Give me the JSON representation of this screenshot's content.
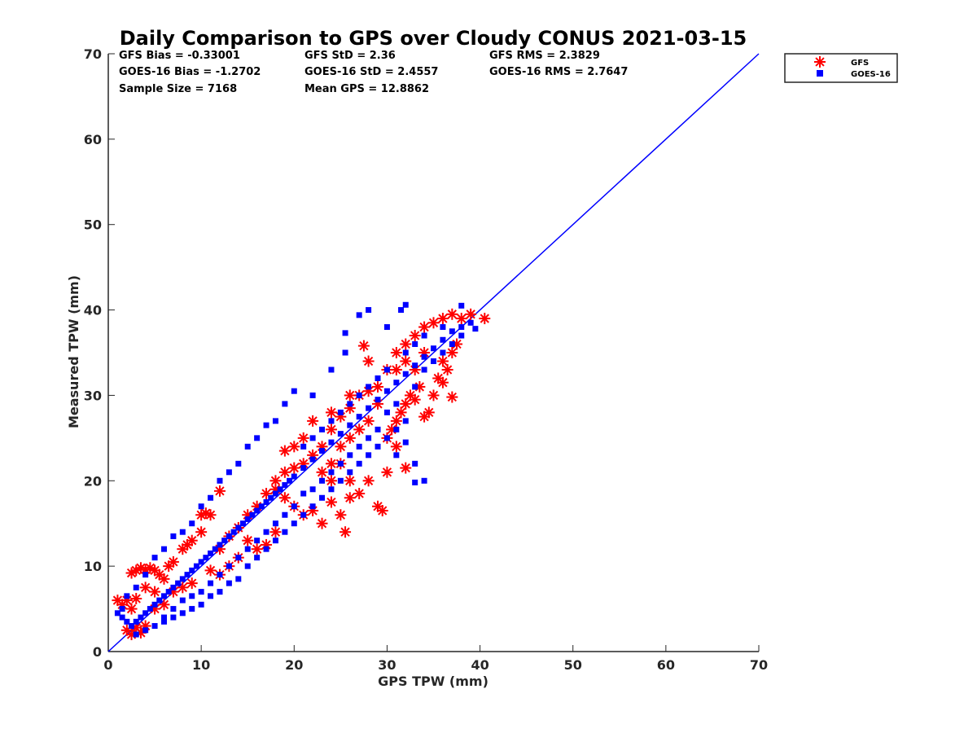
{
  "chart_data": {
    "type": "scatter",
    "title": "Daily Comparison to GPS over Cloudy CONUS 2021-03-15",
    "xlabel": "GPS TPW (mm)",
    "ylabel": "Measured TPW (mm)",
    "xlim": [
      0,
      70
    ],
    "ylim": [
      0,
      70
    ],
    "xticks": [
      0,
      10,
      20,
      30,
      40,
      50,
      60,
      70
    ],
    "yticks": [
      0,
      10,
      20,
      30,
      40,
      50,
      60,
      70
    ],
    "grid": false,
    "legend_position": "outside-top-right",
    "stats": [
      [
        "GFS Bias = -0.33001",
        "GFS StD = 2.36",
        "GFS RMS = 2.3829"
      ],
      [
        "GOES-16 Bias = -1.2702",
        "GOES-16 StD = 2.4557",
        "GOES-16 RMS = 2.7647"
      ],
      [
        "Sample Size = 7168",
        "Mean GPS = 12.8862"
      ]
    ],
    "series": [
      {
        "name": "GFS",
        "marker": "asterisk",
        "color": "#ff0000",
        "points": [
          [
            1,
            6
          ],
          [
            1.5,
            5.5
          ],
          [
            2,
            6
          ],
          [
            2.5,
            5
          ],
          [
            3,
            6.2
          ],
          [
            2,
            2.5
          ],
          [
            2.5,
            2
          ],
          [
            3,
            2.8
          ],
          [
            3.5,
            2.2
          ],
          [
            4,
            3
          ],
          [
            2.5,
            9.2
          ],
          [
            3,
            9.5
          ],
          [
            3.5,
            9.8
          ],
          [
            4,
            9.6
          ],
          [
            4.5,
            9.8
          ],
          [
            5,
            9.5
          ],
          [
            5.5,
            9
          ],
          [
            4,
            7.5
          ],
          [
            5,
            7
          ],
          [
            6,
            8.5
          ],
          [
            6.5,
            10
          ],
          [
            7,
            10.5
          ],
          [
            8,
            12
          ],
          [
            8.5,
            12.5
          ],
          [
            9,
            13
          ],
          [
            10,
            14
          ],
          [
            10,
            16
          ],
          [
            10.5,
            16.2
          ],
          [
            11,
            16
          ],
          [
            12,
            18.8
          ],
          [
            12,
            12
          ],
          [
            13,
            13.5
          ],
          [
            14,
            14.5
          ],
          [
            15,
            16
          ],
          [
            16,
            17
          ],
          [
            17,
            18.5
          ],
          [
            18,
            19
          ],
          [
            19,
            21
          ],
          [
            20,
            21.5
          ],
          [
            21,
            22
          ],
          [
            22,
            23
          ],
          [
            23,
            24
          ],
          [
            24,
            26
          ],
          [
            25,
            27.5
          ],
          [
            26,
            28.5
          ],
          [
            27,
            30
          ],
          [
            28,
            30.5
          ],
          [
            29,
            31
          ],
          [
            30,
            33
          ],
          [
            31,
            35
          ],
          [
            32,
            36
          ],
          [
            33,
            37
          ],
          [
            34,
            38
          ],
          [
            35,
            38.5
          ],
          [
            36,
            39
          ],
          [
            37,
            39.5
          ],
          [
            38,
            39
          ],
          [
            39,
            39.5
          ],
          [
            40.5,
            39
          ],
          [
            18,
            20
          ],
          [
            19,
            18
          ],
          [
            20,
            17
          ],
          [
            21,
            16
          ],
          [
            22,
            16.5
          ],
          [
            23,
            15
          ],
          [
            24,
            17.5
          ],
          [
            25,
            16
          ],
          [
            25.5,
            14
          ],
          [
            26,
            18
          ],
          [
            27,
            18.5
          ],
          [
            28,
            20
          ],
          [
            29,
            17
          ],
          [
            29.5,
            16.5
          ],
          [
            30,
            21
          ],
          [
            31,
            24
          ],
          [
            32,
            21.5
          ],
          [
            15,
            13
          ],
          [
            16,
            12
          ],
          [
            14,
            11
          ],
          [
            18,
            14
          ],
          [
            17,
            12.5
          ],
          [
            13,
            10
          ],
          [
            12,
            9
          ],
          [
            11,
            9.5
          ],
          [
            9,
            8
          ],
          [
            8,
            7.5
          ],
          [
            7,
            7
          ],
          [
            6,
            5.5
          ],
          [
            5,
            5
          ],
          [
            30,
            25
          ],
          [
            30.5,
            26
          ],
          [
            31,
            27
          ],
          [
            31.5,
            28
          ],
          [
            32,
            29
          ],
          [
            32.5,
            30
          ],
          [
            33,
            29.5
          ],
          [
            33.5,
            31
          ],
          [
            34,
            27.5
          ],
          [
            34.5,
            28
          ],
          [
            35,
            30
          ],
          [
            35.5,
            32
          ],
          [
            36,
            34
          ],
          [
            36.5,
            33
          ],
          [
            37,
            35
          ],
          [
            37.5,
            36
          ],
          [
            33,
            33
          ],
          [
            32,
            34
          ],
          [
            28,
            34
          ],
          [
            27.5,
            35.8
          ],
          [
            26,
            30
          ],
          [
            24,
            28
          ],
          [
            22,
            27
          ],
          [
            21,
            25
          ],
          [
            20,
            24
          ],
          [
            19,
            23.5
          ],
          [
            23,
            21
          ],
          [
            24,
            20
          ],
          [
            25,
            22
          ],
          [
            26,
            20
          ],
          [
            37,
            29.8
          ],
          [
            36,
            31.5
          ],
          [
            34,
            35
          ],
          [
            31,
            33
          ],
          [
            29,
            29
          ],
          [
            28,
            27
          ],
          [
            27,
            26
          ],
          [
            26,
            25
          ],
          [
            25,
            24
          ],
          [
            24,
            22
          ]
        ]
      },
      {
        "name": "GOES-16",
        "marker": "square",
        "color": "#0000ff",
        "points": [
          [
            1,
            4.5
          ],
          [
            1.5,
            4
          ],
          [
            2,
            3.5
          ],
          [
            2.5,
            3
          ],
          [
            3,
            3.5
          ],
          [
            3.5,
            4
          ],
          [
            4,
            4.5
          ],
          [
            4.5,
            5
          ],
          [
            5,
            5.5
          ],
          [
            5.5,
            6
          ],
          [
            6,
            6.5
          ],
          [
            6.5,
            7
          ],
          [
            7,
            7.5
          ],
          [
            7.5,
            8
          ],
          [
            8,
            8.5
          ],
          [
            8.5,
            9
          ],
          [
            9,
            9.5
          ],
          [
            9.5,
            10
          ],
          [
            10,
            10.5
          ],
          [
            10.5,
            11
          ],
          [
            11,
            11.5
          ],
          [
            11.5,
            12
          ],
          [
            12,
            12.5
          ],
          [
            12.5,
            13
          ],
          [
            13,
            13.5
          ],
          [
            13.5,
            14
          ],
          [
            14,
            14.5
          ],
          [
            14.5,
            15
          ],
          [
            15,
            15.5
          ],
          [
            15.5,
            16
          ],
          [
            16,
            16.5
          ],
          [
            16.5,
            17
          ],
          [
            17,
            17.5
          ],
          [
            17.5,
            18
          ],
          [
            18,
            18.5
          ],
          [
            18.5,
            19
          ],
          [
            19,
            19.5
          ],
          [
            19.5,
            20
          ],
          [
            20,
            20.5
          ],
          [
            21,
            21.5
          ],
          [
            22,
            22.5
          ],
          [
            23,
            23.5
          ],
          [
            24,
            24.5
          ],
          [
            25,
            25.5
          ],
          [
            26,
            26.5
          ],
          [
            27,
            27.5
          ],
          [
            28,
            28.5
          ],
          [
            29,
            29.5
          ],
          [
            30,
            30.5
          ],
          [
            31,
            31.5
          ],
          [
            32,
            32.5
          ],
          [
            33,
            33.5
          ],
          [
            34,
            34.5
          ],
          [
            35,
            35.5
          ],
          [
            36,
            36.5
          ],
          [
            37,
            37.5
          ],
          [
            38,
            38
          ],
          [
            39,
            38.5
          ],
          [
            38,
            40.5
          ],
          [
            39.5,
            37.8
          ],
          [
            3,
            2
          ],
          [
            4,
            2.5
          ],
          [
            5,
            3
          ],
          [
            6,
            3.5
          ],
          [
            7,
            4
          ],
          [
            8,
            4.5
          ],
          [
            9,
            5
          ],
          [
            10,
            5.5
          ],
          [
            11,
            6.5
          ],
          [
            12,
            7
          ],
          [
            13,
            8
          ],
          [
            14,
            8.5
          ],
          [
            15,
            10
          ],
          [
            16,
            11
          ],
          [
            17,
            12
          ],
          [
            18,
            13
          ],
          [
            19,
            14
          ],
          [
            20,
            15
          ],
          [
            21,
            16
          ],
          [
            22,
            17
          ],
          [
            23,
            18
          ],
          [
            24,
            19
          ],
          [
            25,
            20
          ],
          [
            26,
            21
          ],
          [
            27,
            22
          ],
          [
            28,
            23
          ],
          [
            29,
            24
          ],
          [
            30,
            25
          ],
          [
            31,
            26
          ],
          [
            32,
            27
          ],
          [
            33,
            22
          ],
          [
            34,
            20
          ],
          [
            33,
            19.8
          ],
          [
            32,
            24.5
          ],
          [
            31,
            23
          ],
          [
            28,
            40
          ],
          [
            27,
            39.4
          ],
          [
            32,
            40.6
          ],
          [
            31.5,
            40
          ],
          [
            30,
            38
          ],
          [
            25.5,
            37.3
          ],
          [
            25.5,
            35
          ],
          [
            24,
            33
          ],
          [
            22,
            30
          ],
          [
            20,
            30.5
          ],
          [
            19,
            29
          ],
          [
            18,
            27
          ],
          [
            17,
            26.5
          ],
          [
            16,
            25
          ],
          [
            15,
            24
          ],
          [
            14,
            22
          ],
          [
            13,
            21
          ],
          [
            12,
            20
          ],
          [
            11,
            18
          ],
          [
            10,
            17
          ],
          [
            9,
            15
          ],
          [
            8,
            14
          ],
          [
            7,
            13.5
          ],
          [
            6,
            12
          ],
          [
            5,
            11
          ],
          [
            4,
            9
          ],
          [
            3,
            7.5
          ],
          [
            2,
            6.5
          ],
          [
            1.5,
            5
          ],
          [
            6,
            4
          ],
          [
            7,
            5
          ],
          [
            8,
            6
          ],
          [
            9,
            6.5
          ],
          [
            10,
            7
          ],
          [
            11,
            8
          ],
          [
            12,
            9
          ],
          [
            13,
            10
          ],
          [
            14,
            11
          ],
          [
            15,
            12
          ],
          [
            16,
            13
          ],
          [
            17,
            14
          ],
          [
            18,
            15
          ],
          [
            19,
            16
          ],
          [
            20,
            17
          ],
          [
            21,
            18.5
          ],
          [
            22,
            19
          ],
          [
            23,
            20
          ],
          [
            24,
            21
          ],
          [
            25,
            22
          ],
          [
            26,
            23
          ],
          [
            27,
            24
          ],
          [
            28,
            25
          ],
          [
            29,
            26
          ],
          [
            30,
            28
          ],
          [
            31,
            29
          ],
          [
            33,
            31
          ],
          [
            34,
            33
          ],
          [
            35,
            34
          ],
          [
            36,
            35
          ],
          [
            37,
            36
          ],
          [
            38,
            37
          ],
          [
            36,
            38
          ],
          [
            34,
            37
          ],
          [
            33,
            36
          ],
          [
            32,
            35
          ],
          [
            30,
            33
          ],
          [
            29,
            32
          ],
          [
            28,
            31
          ],
          [
            27,
            30
          ],
          [
            26,
            29
          ],
          [
            25,
            28
          ],
          [
            24,
            27
          ],
          [
            23,
            26
          ],
          [
            22,
            25
          ],
          [
            21,
            24
          ]
        ]
      },
      {
        "name": "1:1 line",
        "marker": "none",
        "color": "#0000ff",
        "line": true,
        "points": [
          [
            0,
            0
          ],
          [
            70,
            70
          ]
        ]
      }
    ],
    "legend": [
      {
        "name": "GFS",
        "marker": "asterisk",
        "color": "#ff0000"
      },
      {
        "name": "GOES-16",
        "marker": "square",
        "color": "#0000ff"
      }
    ]
  }
}
